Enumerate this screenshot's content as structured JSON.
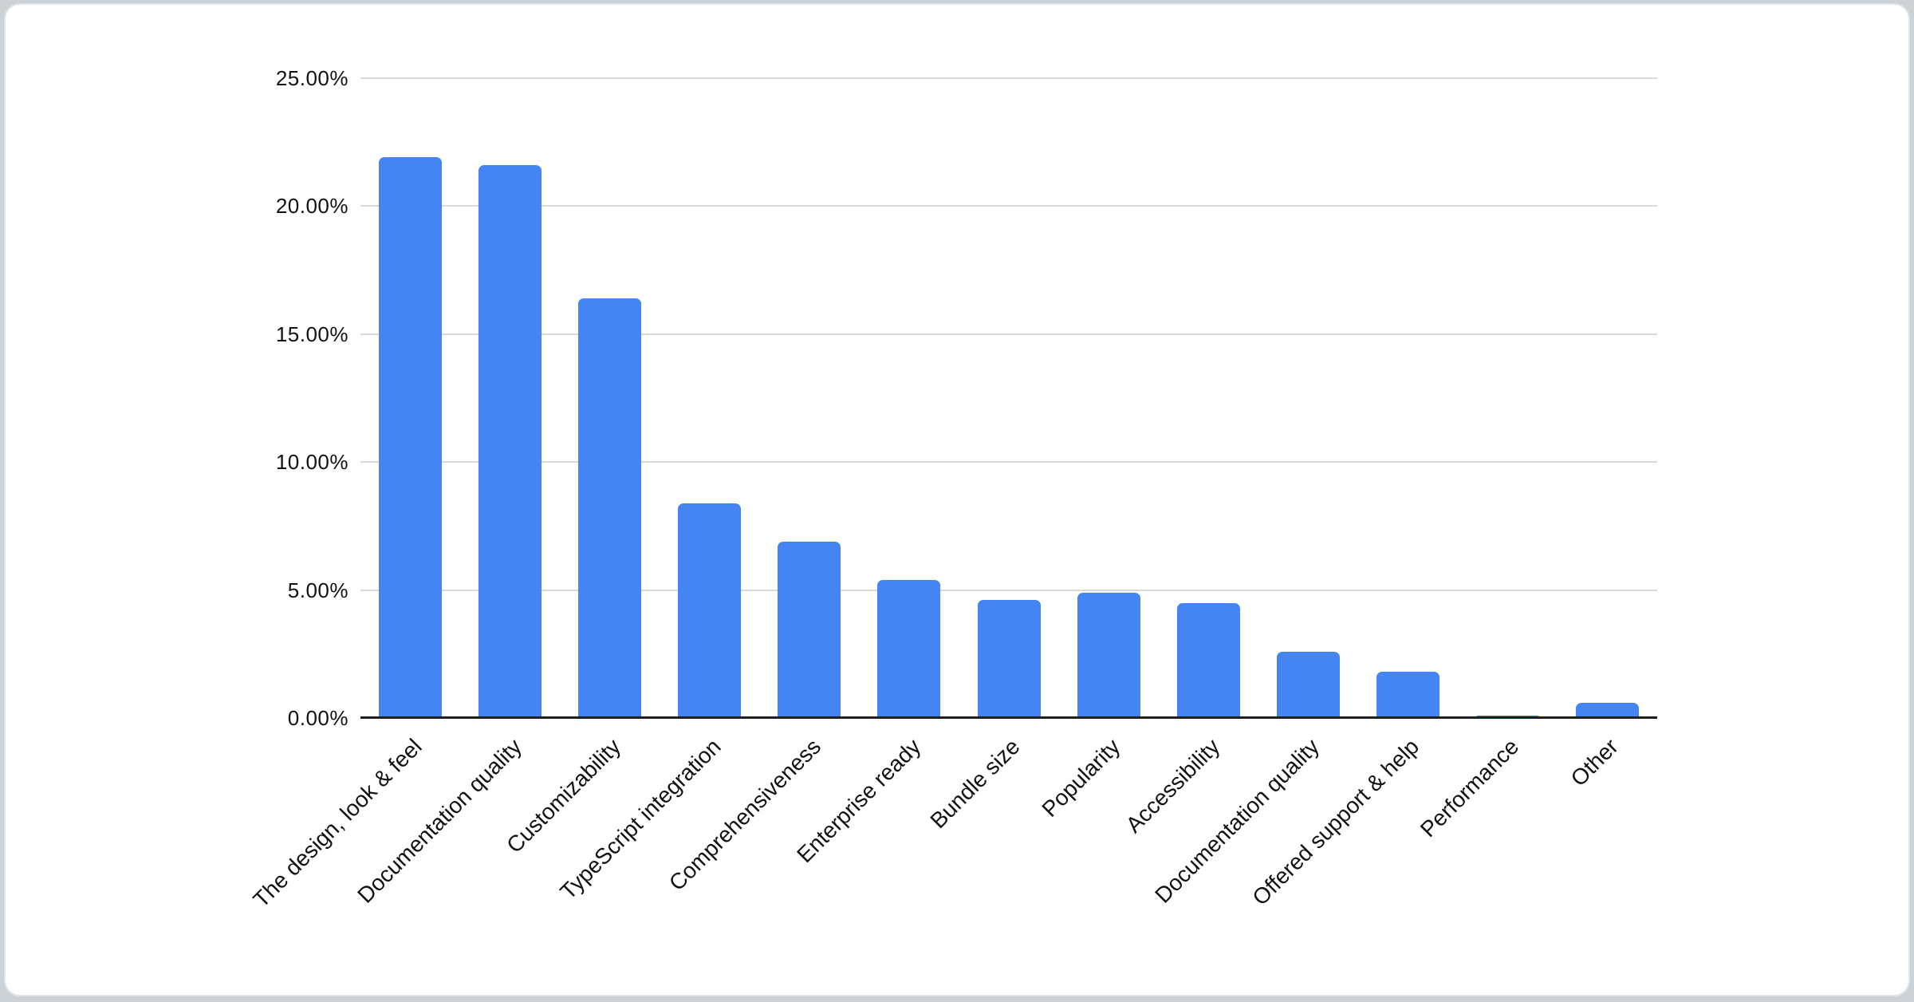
{
  "chart_data": {
    "type": "bar",
    "title": "",
    "categories": [
      "The design, look & feel",
      "Documentation quality",
      "Customizability",
      "TypeScript integration",
      "Comprehensiveness",
      "Enterprise ready",
      "Bundle size",
      "Popularity",
      "Accessibility",
      "Documentation quality",
      "Offered support & help",
      "Performance",
      "Other"
    ],
    "values": [
      21.9,
      21.6,
      16.4,
      8.4,
      6.9,
      5.4,
      4.6,
      4.9,
      4.5,
      2.6,
      1.8,
      0.1,
      0.6
    ],
    "value_unit": "%",
    "xlabel": "",
    "ylabel": "",
    "ylim": [
      0,
      25
    ],
    "yticks": [
      {
        "value": 25,
        "label": "25.00%"
      },
      {
        "value": 20,
        "label": "20.00%"
      },
      {
        "value": 15,
        "label": "15.00%"
      },
      {
        "value": 10,
        "label": "10.00%"
      },
      {
        "value": 5,
        "label": "5.00%"
      },
      {
        "value": 0,
        "label": "0.00%"
      }
    ],
    "grid": true,
    "legend": "none",
    "x_label_rotation_deg": -45,
    "colors": {
      "bar": "#4484F3",
      "axis_line": "#1f1f1f",
      "gridline": "#d9d9d9",
      "labels": "#111111",
      "card_background": "#ffffff",
      "page_edge": "#cdd2d6"
    }
  }
}
